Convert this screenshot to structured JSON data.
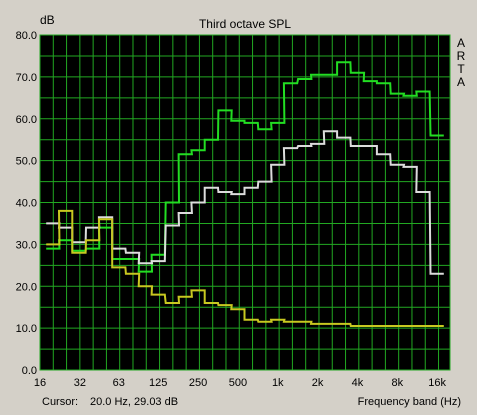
{
  "chart_data": {
    "type": "line",
    "title": "Third octave SPL",
    "ylabel": "dB",
    "xlabel": "Frequency band (Hz)",
    "watermark": "ARTA",
    "xscale": "log",
    "xlim": [
      16,
      20000
    ],
    "ylim": [
      0,
      80
    ],
    "grid": true,
    "x_ticks": [
      "16",
      "32",
      "63",
      "125",
      "250",
      "500",
      "1k",
      "2k",
      "4k",
      "8k",
      "16k"
    ],
    "y_ticks": [
      "0.0",
      "10.0",
      "20.0",
      "30.0",
      "40.0",
      "50.0",
      "60.0",
      "70.0",
      "80.0"
    ],
    "x": [
      20,
      25,
      31.5,
      40,
      50,
      63,
      80,
      100,
      125,
      160,
      200,
      250,
      315,
      400,
      500,
      630,
      800,
      1000,
      1250,
      1600,
      2000,
      2500,
      3150,
      4000,
      5000,
      6300,
      8000,
      10000,
      12500,
      16000
    ],
    "series": [
      {
        "color": "#22dd22",
        "width": 2,
        "values": [
          29,
          31,
          28.5,
          29,
          34,
          26.5,
          26.5,
          23.5,
          27.5,
          40,
          51.5,
          52.5,
          55,
          62,
          59.5,
          59,
          57.5,
          59,
          68.5,
          69.5,
          70.5,
          70.5,
          73.5,
          71,
          69,
          68.5,
          66,
          65.5,
          66.5,
          56
        ]
      },
      {
        "color": "#dcdcdc",
        "width": 2,
        "values": [
          35,
          34,
          30.5,
          34,
          36.5,
          29,
          28,
          25.5,
          26,
          34.5,
          37.5,
          40,
          43.5,
          42.5,
          42,
          43.5,
          45,
          49,
          53,
          53.5,
          54,
          57,
          55.5,
          53.5,
          53.5,
          51.5,
          49,
          48.5,
          42.5,
          23
        ]
      },
      {
        "color": "#c8c820",
        "width": 2,
        "values": [
          30,
          38,
          28,
          31,
          36,
          24.5,
          23,
          20,
          18,
          16,
          17.5,
          19,
          16,
          15.5,
          14.5,
          12,
          11.5,
          12,
          11.5,
          11.5,
          11,
          11,
          11,
          10.5,
          10.5,
          10.5,
          10.5,
          10.5,
          10.5,
          10.5
        ]
      }
    ]
  },
  "status": {
    "cursor_label": "Cursor:",
    "cursor_value": "20.0 Hz, 29.03 dB",
    "xaxis_label": "Frequency band (Hz)"
  }
}
